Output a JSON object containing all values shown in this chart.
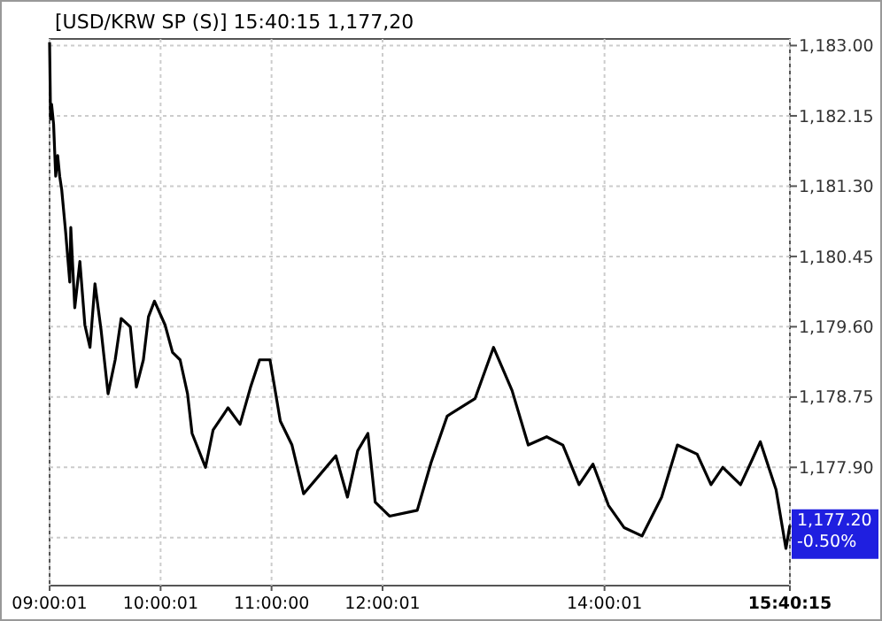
{
  "chart_data": {
    "type": "line",
    "title": "[USD/KRW SP (S)] 15:40:15  1,177,20",
    "x": [
      9.0,
      9.009,
      9.018,
      9.036,
      9.055,
      9.073,
      9.091,
      9.109,
      9.145,
      9.182,
      9.191,
      9.227,
      9.273,
      9.318,
      9.364,
      9.409,
      9.464,
      9.527,
      9.591,
      9.645,
      9.727,
      9.782,
      9.845,
      9.891,
      9.945,
      10.041,
      10.108,
      10.176,
      10.243,
      10.284,
      10.405,
      10.473,
      10.608,
      10.716,
      10.811,
      10.892,
      10.986,
      11.079,
      11.184,
      11.289,
      11.447,
      11.579,
      11.684,
      11.776,
      11.868,
      11.934,
      12.063,
      12.313,
      12.438,
      12.583,
      12.833,
      13.0,
      13.167,
      13.313,
      13.479,
      13.625,
      13.771,
      13.896,
      14.036,
      14.178,
      14.338,
      14.515,
      14.657,
      14.835,
      14.96,
      15.066,
      15.226,
      15.333,
      15.404,
      15.546,
      15.635,
      15.6708
    ],
    "series": [
      {
        "color": "#000000",
        "values": [
          1183.04,
          1182.11,
          1182.29,
          1182.05,
          1181.42,
          1181.67,
          1181.42,
          1181.26,
          1180.74,
          1180.14,
          1180.8,
          1179.83,
          1180.39,
          1179.62,
          1179.35,
          1180.12,
          1179.56,
          1178.79,
          1179.2,
          1179.7,
          1179.6,
          1178.87,
          1179.2,
          1179.72,
          1179.91,
          1179.62,
          1179.29,
          1179.2,
          1178.79,
          1178.31,
          1177.9,
          1178.35,
          1178.62,
          1178.42,
          1178.87,
          1179.2,
          1179.2,
          1178.46,
          1178.17,
          1177.58,
          1177.83,
          1178.04,
          1177.54,
          1178.1,
          1178.31,
          1177.48,
          1177.31,
          1177.38,
          1177.96,
          1178.52,
          1178.73,
          1179.35,
          1178.83,
          1178.17,
          1178.27,
          1178.17,
          1177.69,
          1177.94,
          1177.44,
          1177.17,
          1177.07,
          1177.54,
          1178.17,
          1178.06,
          1177.69,
          1177.9,
          1177.69,
          1178.0,
          1178.21,
          1177.63,
          1176.92,
          1177.2
        ]
      }
    ],
    "xlim": [
      9.0,
      15.6708
    ],
    "xticks": [
      {
        "value": 9.0003,
        "label": "09:00:01"
      },
      {
        "value": 10.0003,
        "label": "10:00:01"
      },
      {
        "value": 11,
        "label": "11:00:00"
      },
      {
        "value": 12.0003,
        "label": "12:00:01"
      },
      {
        "value": 14.0003,
        "label": "14:00:01"
      },
      {
        "value": 15.6708,
        "label": "15:40:15"
      }
    ],
    "ylim": [
      1176.47,
      1183.08
    ],
    "yticks": [
      {
        "value": 1177.05,
        "label": null
      },
      {
        "value": 1177.9,
        "label": "1,177.90"
      },
      {
        "value": 1178.75,
        "label": "1,178.75"
      },
      {
        "value": 1179.6,
        "label": "1,179.60"
      },
      {
        "value": 1180.45,
        "label": "1,180.45"
      },
      {
        "value": 1181.3,
        "label": "1,181.30"
      },
      {
        "value": 1182.15,
        "label": "1,182.15"
      },
      {
        "value": 1183,
        "label": "1,183.00"
      }
    ],
    "grid": true,
    "annotations": [
      {
        "text": "1,177.20\n-0.50%",
        "x": 15.6708,
        "y": 1177.2
      }
    ]
  }
}
